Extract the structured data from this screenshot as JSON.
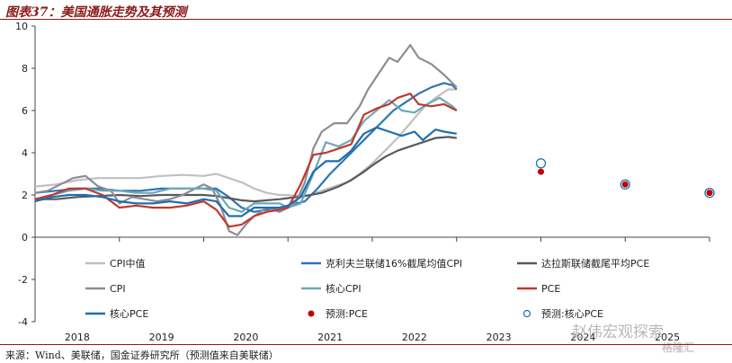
{
  "title": "图表37：美国通胀走势及其预测",
  "source": "来源：Wind、美联储，国金证券研究所（预测值来自美联储）",
  "watermark": "赵伟宏观探索",
  "watermark2": "格隆汇",
  "chart_data": {
    "type": "line",
    "title": "图表37：美国通胀走势及其预测",
    "xlabel": "",
    "ylabel": "",
    "ylim": [
      -4,
      10
    ],
    "xlim": [
      2018,
      2025
    ],
    "yticks": [
      -4,
      -2,
      0,
      2,
      4,
      6,
      8,
      10
    ],
    "xticks": [
      {
        "label": "2018",
        "x": 2018
      },
      {
        "label": "2019",
        "x": 2019
      },
      {
        "label": "2020",
        "x": 2020
      },
      {
        "label": "2021",
        "x": 2021
      },
      {
        "label": "2022",
        "x": 2022
      },
      {
        "label": "2023",
        "x": 2023
      },
      {
        "label": "2024",
        "x": 2024
      },
      {
        "label": "2025",
        "x": 2025
      }
    ],
    "grid": false,
    "legend_position": "bottom",
    "series": [
      {
        "name": "CPI中值",
        "color": "#c0c0c0",
        "style": "line",
        "points": [
          [
            2018.0,
            2.4
          ],
          [
            2018.25,
            2.5
          ],
          [
            2018.5,
            2.7
          ],
          [
            2018.75,
            2.8
          ],
          [
            2019.0,
            2.8
          ],
          [
            2019.25,
            2.8
          ],
          [
            2019.5,
            2.9
          ],
          [
            2019.75,
            2.95
          ],
          [
            2020.0,
            2.9
          ],
          [
            2020.15,
            3.0
          ],
          [
            2020.3,
            2.8
          ],
          [
            2020.45,
            2.6
          ],
          [
            2020.6,
            2.3
          ],
          [
            2020.75,
            2.1
          ],
          [
            2020.9,
            2.0
          ],
          [
            2021.0,
            2.0
          ],
          [
            2021.1,
            1.95
          ],
          [
            2021.25,
            2.0
          ],
          [
            2021.4,
            2.2
          ],
          [
            2021.55,
            2.4
          ],
          [
            2021.7,
            2.6
          ],
          [
            2021.85,
            3.0
          ],
          [
            2022.0,
            3.5
          ],
          [
            2022.15,
            4.1
          ],
          [
            2022.3,
            4.7
          ],
          [
            2022.45,
            5.4
          ],
          [
            2022.6,
            6.1
          ],
          [
            2022.75,
            6.6
          ],
          [
            2022.9,
            7.0
          ],
          [
            2023.0,
            7.0
          ]
        ]
      },
      {
        "name": "克利夫兰联储16%截尾均值CPI",
        "color": "#2e75b6",
        "style": "line",
        "points": [
          [
            2018.0,
            2.1
          ],
          [
            2018.25,
            2.2
          ],
          [
            2018.5,
            2.3
          ],
          [
            2018.75,
            2.3
          ],
          [
            2019.0,
            2.2
          ],
          [
            2019.25,
            2.2
          ],
          [
            2019.5,
            2.3
          ],
          [
            2019.75,
            2.3
          ],
          [
            2020.0,
            2.3
          ],
          [
            2020.15,
            2.3
          ],
          [
            2020.3,
            1.9
          ],
          [
            2020.45,
            1.4
          ],
          [
            2020.6,
            1.2
          ],
          [
            2020.75,
            1.3
          ],
          [
            2020.9,
            1.4
          ],
          [
            2021.0,
            1.5
          ],
          [
            2021.2,
            1.7
          ],
          [
            2021.35,
            2.3
          ],
          [
            2021.5,
            3.0
          ],
          [
            2021.65,
            3.6
          ],
          [
            2021.8,
            4.2
          ],
          [
            2021.95,
            4.8
          ],
          [
            2022.1,
            5.4
          ],
          [
            2022.25,
            6.0
          ],
          [
            2022.4,
            6.4
          ],
          [
            2022.55,
            6.8
          ],
          [
            2022.7,
            7.1
          ],
          [
            2022.85,
            7.3
          ],
          [
            2022.95,
            7.2
          ],
          [
            2023.0,
            7.0
          ]
        ]
      },
      {
        "name": "达拉斯联储截尾平均PCE",
        "color": "#595959",
        "style": "line",
        "points": [
          [
            2018.0,
            1.8
          ],
          [
            2018.25,
            1.8
          ],
          [
            2018.5,
            1.9
          ],
          [
            2018.75,
            1.95
          ],
          [
            2019.0,
            2.0
          ],
          [
            2019.25,
            1.95
          ],
          [
            2019.5,
            2.0
          ],
          [
            2019.75,
            2.0
          ],
          [
            2020.0,
            2.0
          ],
          [
            2020.15,
            1.95
          ],
          [
            2020.3,
            1.85
          ],
          [
            2020.45,
            1.75
          ],
          [
            2020.6,
            1.7
          ],
          [
            2020.75,
            1.75
          ],
          [
            2020.9,
            1.8
          ],
          [
            2021.0,
            1.85
          ],
          [
            2021.2,
            1.95
          ],
          [
            2021.4,
            2.1
          ],
          [
            2021.6,
            2.4
          ],
          [
            2021.75,
            2.7
          ],
          [
            2021.9,
            3.1
          ],
          [
            2022.0,
            3.4
          ],
          [
            2022.15,
            3.8
          ],
          [
            2022.3,
            4.1
          ],
          [
            2022.45,
            4.3
          ],
          [
            2022.6,
            4.5
          ],
          [
            2022.75,
            4.7
          ],
          [
            2022.9,
            4.75
          ],
          [
            2023.0,
            4.7
          ]
        ]
      },
      {
        "name": "CPI",
        "color": "#8c8c96",
        "style": "line",
        "points": [
          [
            2018.0,
            2.1
          ],
          [
            2018.15,
            2.2
          ],
          [
            2018.3,
            2.5
          ],
          [
            2018.45,
            2.8
          ],
          [
            2018.6,
            2.9
          ],
          [
            2018.75,
            2.4
          ],
          [
            2018.9,
            2.2
          ],
          [
            2019.0,
            1.6
          ],
          [
            2019.15,
            1.9
          ],
          [
            2019.3,
            1.8
          ],
          [
            2019.45,
            1.7
          ],
          [
            2019.6,
            1.8
          ],
          [
            2019.75,
            2.0
          ],
          [
            2019.9,
            2.3
          ],
          [
            2020.0,
            2.5
          ],
          [
            2020.1,
            2.3
          ],
          [
            2020.2,
            1.5
          ],
          [
            2020.3,
            0.3
          ],
          [
            2020.4,
            0.1
          ],
          [
            2020.5,
            0.6
          ],
          [
            2020.6,
            1.0
          ],
          [
            2020.75,
            1.4
          ],
          [
            2020.9,
            1.2
          ],
          [
            2021.0,
            1.4
          ],
          [
            2021.1,
            1.7
          ],
          [
            2021.2,
            2.6
          ],
          [
            2021.3,
            4.2
          ],
          [
            2021.4,
            5.0
          ],
          [
            2021.55,
            5.4
          ],
          [
            2021.7,
            5.4
          ],
          [
            2021.85,
            6.2
          ],
          [
            2021.95,
            7.0
          ],
          [
            2022.1,
            7.9
          ],
          [
            2022.2,
            8.5
          ],
          [
            2022.3,
            8.3
          ],
          [
            2022.45,
            9.1
          ],
          [
            2022.55,
            8.5
          ],
          [
            2022.7,
            8.2
          ],
          [
            2022.85,
            7.7
          ],
          [
            2023.0,
            7.1
          ]
        ]
      },
      {
        "name": "核心CPI",
        "color": "#6fa8b8",
        "style": "line",
        "points": [
          [
            2018.0,
            1.8
          ],
          [
            2018.2,
            2.0
          ],
          [
            2018.4,
            2.2
          ],
          [
            2018.6,
            2.3
          ],
          [
            2018.8,
            2.2
          ],
          [
            2019.0,
            2.2
          ],
          [
            2019.2,
            2.1
          ],
          [
            2019.4,
            2.1
          ],
          [
            2019.6,
            2.3
          ],
          [
            2019.8,
            2.3
          ],
          [
            2020.0,
            2.3
          ],
          [
            2020.15,
            2.2
          ],
          [
            2020.3,
            1.4
          ],
          [
            2020.45,
            1.2
          ],
          [
            2020.6,
            1.6
          ],
          [
            2020.75,
            1.6
          ],
          [
            2020.9,
            1.6
          ],
          [
            2021.0,
            1.4
          ],
          [
            2021.15,
            1.6
          ],
          [
            2021.3,
            3.0
          ],
          [
            2021.45,
            4.5
          ],
          [
            2021.6,
            4.3
          ],
          [
            2021.75,
            4.6
          ],
          [
            2021.9,
            5.5
          ],
          [
            2022.05,
            6.0
          ],
          [
            2022.2,
            6.5
          ],
          [
            2022.35,
            6.0
          ],
          [
            2022.5,
            5.9
          ],
          [
            2022.65,
            6.3
          ],
          [
            2022.8,
            6.6
          ],
          [
            2022.95,
            6.2
          ],
          [
            2023.0,
            6.0
          ]
        ]
      },
      {
        "name": "PCE",
        "color": "#c0392b",
        "style": "line",
        "points": [
          [
            2018.0,
            1.8
          ],
          [
            2018.2,
            2.0
          ],
          [
            2018.4,
            2.3
          ],
          [
            2018.6,
            2.3
          ],
          [
            2018.8,
            2.0
          ],
          [
            2019.0,
            1.4
          ],
          [
            2019.2,
            1.5
          ],
          [
            2019.4,
            1.4
          ],
          [
            2019.6,
            1.4
          ],
          [
            2019.8,
            1.5
          ],
          [
            2020.0,
            1.7
          ],
          [
            2020.15,
            1.3
          ],
          [
            2020.3,
            0.5
          ],
          [
            2020.45,
            0.6
          ],
          [
            2020.6,
            1.0
          ],
          [
            2020.75,
            1.2
          ],
          [
            2020.9,
            1.3
          ],
          [
            2021.0,
            1.4
          ],
          [
            2021.15,
            2.5
          ],
          [
            2021.3,
            3.9
          ],
          [
            2021.45,
            4.0
          ],
          [
            2021.6,
            4.2
          ],
          [
            2021.75,
            4.4
          ],
          [
            2021.9,
            5.8
          ],
          [
            2022.05,
            6.1
          ],
          [
            2022.2,
            6.3
          ],
          [
            2022.3,
            6.6
          ],
          [
            2022.45,
            6.8
          ],
          [
            2022.55,
            6.3
          ],
          [
            2022.7,
            6.2
          ],
          [
            2022.85,
            6.3
          ],
          [
            2023.0,
            6.0
          ]
        ]
      },
      {
        "name": "核心PCE",
        "color": "#1f6eb0",
        "style": "line",
        "points": [
          [
            2018.0,
            1.7
          ],
          [
            2018.2,
            1.9
          ],
          [
            2018.4,
            2.0
          ],
          [
            2018.6,
            2.0
          ],
          [
            2018.8,
            1.9
          ],
          [
            2019.0,
            1.7
          ],
          [
            2019.2,
            1.6
          ],
          [
            2019.4,
            1.6
          ],
          [
            2019.6,
            1.7
          ],
          [
            2019.8,
            1.6
          ],
          [
            2020.0,
            1.8
          ],
          [
            2020.15,
            1.7
          ],
          [
            2020.3,
            1.0
          ],
          [
            2020.45,
            1.0
          ],
          [
            2020.6,
            1.4
          ],
          [
            2020.75,
            1.4
          ],
          [
            2020.9,
            1.4
          ],
          [
            2021.0,
            1.5
          ],
          [
            2021.15,
            1.9
          ],
          [
            2021.3,
            3.1
          ],
          [
            2021.45,
            3.6
          ],
          [
            2021.6,
            3.6
          ],
          [
            2021.75,
            4.1
          ],
          [
            2021.9,
            4.9
          ],
          [
            2022.05,
            5.2
          ],
          [
            2022.2,
            5.0
          ],
          [
            2022.35,
            4.8
          ],
          [
            2022.5,
            5.0
          ],
          [
            2022.6,
            4.6
          ],
          [
            2022.75,
            5.1
          ],
          [
            2022.85,
            5.0
          ],
          [
            2023.0,
            4.9
          ]
        ]
      },
      {
        "name": "预测:PCE",
        "color": "#c00000",
        "style": "marker-filled",
        "points": [
          [
            2024.0,
            3.1
          ],
          [
            2025.0,
            2.5
          ],
          [
            2026.0,
            2.1
          ]
        ]
      },
      {
        "name": "预测:核心PCE",
        "color": "#1f6eb0",
        "style": "marker-hollow",
        "points": [
          [
            2024.0,
            3.5
          ],
          [
            2025.0,
            2.5
          ],
          [
            2026.0,
            2.1
          ]
        ]
      }
    ]
  }
}
